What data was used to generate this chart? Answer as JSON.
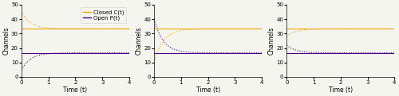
{
  "k1": 1.0,
  "k2": 2.0,
  "N": 50,
  "t_max": 4.0,
  "t_points": 1000,
  "cases": [
    {
      "C0": 45,
      "P0": 5
    },
    {
      "C0": 10,
      "P0": 40
    },
    {
      "C0": 28,
      "P0": 22
    }
  ],
  "C_star": 33.3333,
  "P_star": 16.6667,
  "color_C": "#EAA800",
  "color_P": "#4B0082",
  "ylim": [
    0,
    50
  ],
  "yticks": [
    0,
    10,
    20,
    30,
    40,
    50
  ],
  "xlim": [
    0,
    4
  ],
  "xticks": [
    0,
    1,
    2,
    3,
    4
  ],
  "ylabel": "Channels",
  "xlabel": "Time (t)",
  "legend_labels": [
    "Closed C(t)",
    "Open P(t)"
  ],
  "solution_linewidth": 0.8,
  "steady_linewidth": 0.8,
  "dot_size": 1.5,
  "fig_width": 5.0,
  "fig_height": 1.21,
  "dpi": 100,
  "label_fontsize": 5.5,
  "tick_fontsize": 5.0,
  "legend_fontsize": 5.0,
  "bg_color": "#f5f5f0"
}
